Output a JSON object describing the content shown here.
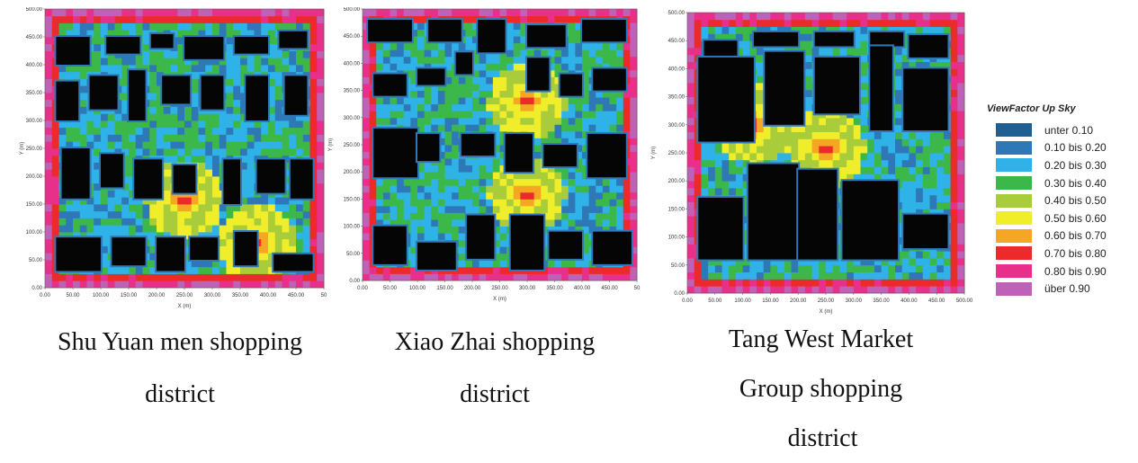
{
  "chart_data": [
    {
      "type": "heatmap",
      "xlabel": "X (m)",
      "ylabel": "Y (m)",
      "xlim": [
        0,
        500
      ],
      "ylim": [
        0,
        500
      ],
      "xticks": [
        "0.00",
        "50.00",
        "100.00",
        "150.00",
        "200.00",
        "250.00",
        "300.00",
        "350.00",
        "400.00",
        "450.00",
        "50"
      ],
      "yticks": [
        "0.00",
        "50.00",
        "100.00",
        "150.00",
        "200.00",
        "250.00",
        "300.00",
        "350.00",
        "400.00",
        "450.00",
        "500.00"
      ],
      "caption": [
        "Shu Yuan men shopping",
        "district"
      ]
    },
    {
      "type": "heatmap",
      "xlabel": "X (m)",
      "ylabel": "Y (m)",
      "xlim": [
        0,
        500
      ],
      "ylim": [
        0,
        500
      ],
      "xticks": [
        "0.00",
        "50.00",
        "100.00",
        "150.00",
        "200.00",
        "250.00",
        "300.00",
        "350.00",
        "400.00",
        "450.00",
        "50"
      ],
      "yticks": [
        "0.00",
        "50.00",
        "100.00",
        "150.00",
        "200.00",
        "250.00",
        "300.00",
        "350.00",
        "400.00",
        "450.00",
        "500.00"
      ],
      "caption": [
        "Xiao Zhai shopping",
        "district"
      ]
    },
    {
      "type": "heatmap",
      "xlabel": "X (m)",
      "ylabel": "Y (m)",
      "xlim": [
        0,
        500
      ],
      "ylim": [
        0,
        500
      ],
      "xticks": [
        "0.00",
        "50.00",
        "100.00",
        "150.00",
        "200.00",
        "250.00",
        "300.00",
        "350.00",
        "400.00",
        "450.00",
        "500.00"
      ],
      "yticks": [
        "0.00",
        "50.00",
        "100.00",
        "150.00",
        "200.00",
        "250.00",
        "300.00",
        "350.00",
        "400.00",
        "450.00",
        "500.00"
      ],
      "caption": [
        "Tang West Market",
        "Group shopping",
        "district"
      ]
    }
  ],
  "legend": {
    "title": "ViewFactor Up Sky",
    "items": [
      {
        "label": "unter 0.10",
        "color": "#1f5f91"
      },
      {
        "label": "0.10 bis 0.20",
        "color": "#2f78b8"
      },
      {
        "label": "0.20 bis 0.30",
        "color": "#2fb2e8"
      },
      {
        "label": "0.30 bis 0.40",
        "color": "#3cb84a"
      },
      {
        "label": "0.40 bis 0.50",
        "color": "#a8cc3a"
      },
      {
        "label": "0.50 bis 0.60",
        "color": "#f0ee2a"
      },
      {
        "label": "0.60 bis 0.70",
        "color": "#f5a623"
      },
      {
        "label": "0.70 bis 0.80",
        "color": "#ec2a2a"
      },
      {
        "label": "0.80 bis 0.90",
        "color": "#e8308a"
      },
      {
        "label": "über 0.90",
        "color": "#c061b8"
      }
    ]
  }
}
